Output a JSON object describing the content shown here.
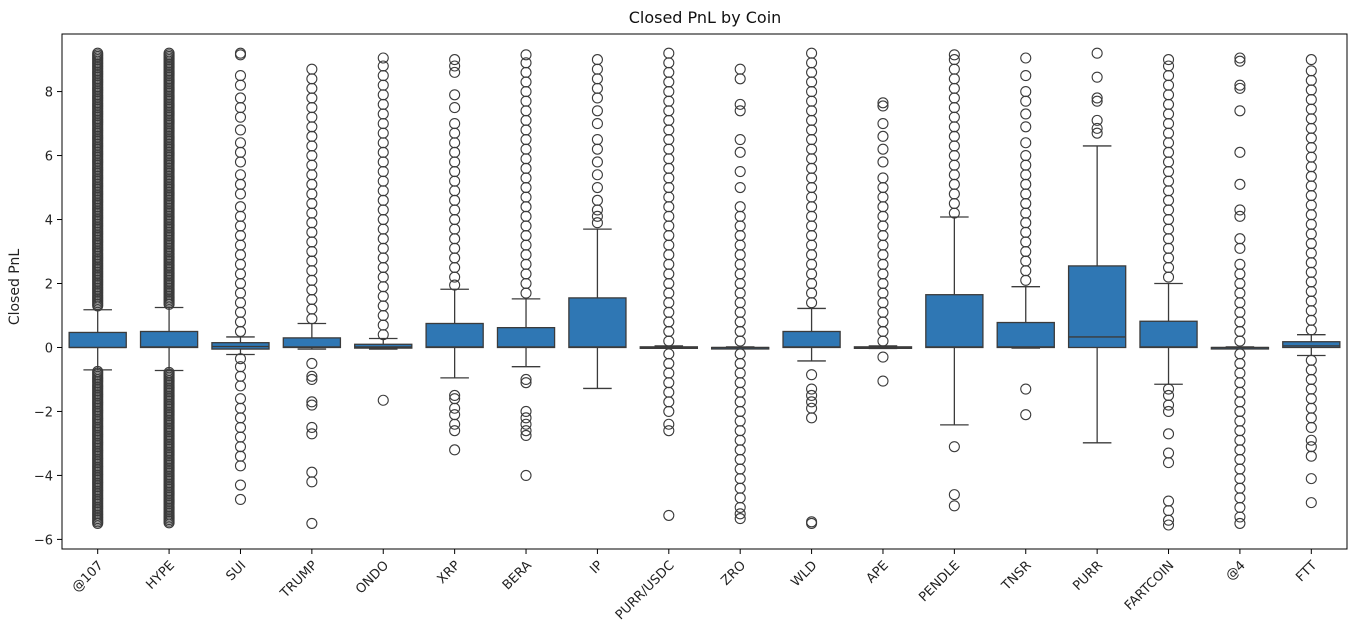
{
  "chart_data": {
    "type": "box",
    "title": "Closed PnL by Coin",
    "xlabel": "",
    "ylabel": "Closed PnL",
    "ylim": [
      -6.3,
      9.8
    ],
    "yticks": [
      -6,
      -4,
      -2,
      0,
      2,
      4,
      6,
      8
    ],
    "ytick_labels": [
      "−6",
      "−4",
      "−2",
      "0",
      "2",
      "4",
      "6",
      "8"
    ],
    "grid": false,
    "legend": "none",
    "box_color": "#2f77b4",
    "line_color": "#3b3b3b",
    "categories": [
      "@107",
      "HYPE",
      "SUI",
      "TRUMP",
      "ONDO",
      "XRP",
      "BERA",
      "IP",
      "PURR/USDC",
      "ZRO",
      "WLD",
      "APE",
      "PENDLE",
      "TNSR",
      "PURR",
      "FARTCOIN",
      "@4",
      "FTT"
    ],
    "boxes": [
      {
        "category": "@107",
        "whisker_low": -0.7,
        "q1": 0.0,
        "median": 0.0,
        "q3": 0.47,
        "whisker_high": 1.18,
        "outliers_high": [
          1.3,
          9.2
        ],
        "outliers_low": [
          -0.75,
          -5.5
        ],
        "dense": true
      },
      {
        "category": "HYPE",
        "whisker_low": -0.72,
        "q1": 0.0,
        "median": 0.02,
        "q3": 0.5,
        "whisker_high": 1.25,
        "outliers_high": [
          1.35,
          9.2
        ],
        "outliers_low": [
          -0.78,
          -5.5
        ],
        "dense": true
      },
      {
        "category": "SUI",
        "whisker_low": -0.22,
        "q1": -0.05,
        "median": 0.03,
        "q3": 0.15,
        "whisker_high": 0.33,
        "outliers_high": [
          0.5,
          0.8,
          1.1,
          1.4,
          1.7,
          2.0,
          2.3,
          2.6,
          2.9,
          3.2,
          3.5,
          3.8,
          4.1,
          4.4,
          4.8,
          5.1,
          5.4,
          5.8,
          6.1,
          6.4,
          6.8,
          7.2,
          7.5,
          7.8,
          8.2,
          8.5,
          9.15,
          9.2
        ],
        "outliers_low": [
          -0.35,
          -0.6,
          -0.9,
          -1.2,
          -1.6,
          -1.9,
          -2.2,
          -2.5,
          -2.8,
          -3.1,
          -3.4,
          -3.7,
          -4.3,
          -4.75
        ],
        "dense": false
      },
      {
        "category": "TRUMP",
        "whisker_low": -0.05,
        "q1": 0.0,
        "median": 0.02,
        "q3": 0.3,
        "whisker_high": 0.75,
        "outliers_high": [
          0.9,
          1.2,
          1.5,
          1.8,
          2.1,
          2.4,
          2.7,
          3.0,
          3.3,
          3.6,
          3.9,
          4.2,
          4.5,
          4.8,
          5.1,
          5.4,
          5.7,
          6.0,
          6.3,
          6.6,
          6.9,
          7.2,
          7.5,
          7.8,
          8.1,
          8.4,
          8.7
        ],
        "outliers_low": [
          -0.5,
          -0.9,
          -1.0,
          -1.7,
          -1.8,
          -2.5,
          -2.7,
          -3.9,
          -4.2,
          -5.5
        ],
        "dense": false
      },
      {
        "category": "ONDO",
        "whisker_low": -0.05,
        "q1": -0.02,
        "median": 0.02,
        "q3": 0.1,
        "whisker_high": 0.28,
        "outliers_high": [
          0.4,
          0.7,
          1.0,
          1.3,
          1.6,
          1.9,
          2.2,
          2.5,
          2.8,
          3.1,
          3.4,
          3.7,
          4.0,
          4.3,
          4.6,
          4.9,
          5.2,
          5.5,
          5.8,
          6.1,
          6.4,
          6.7,
          7.0,
          7.3,
          7.6,
          7.9,
          8.2,
          8.5,
          8.8,
          9.05
        ],
        "outliers_low": [
          -1.65
        ],
        "dense": false
      },
      {
        "category": "XRP",
        "whisker_low": -0.95,
        "q1": 0.0,
        "median": 0.02,
        "q3": 0.75,
        "whisker_high": 1.82,
        "outliers_high": [
          1.95,
          2.2,
          2.5,
          2.8,
          3.1,
          3.4,
          3.7,
          4.0,
          4.3,
          4.6,
          4.9,
          5.2,
          5.5,
          5.8,
          6.1,
          6.4,
          6.7,
          7.0,
          7.5,
          7.9,
          8.6,
          8.8,
          9.0
        ],
        "outliers_low": [
          -1.5,
          -1.6,
          -1.9,
          -2.1,
          -2.4,
          -2.6,
          -3.2
        ],
        "dense": false
      },
      {
        "category": "BERA",
        "whisker_low": -0.6,
        "q1": 0.0,
        "median": 0.02,
        "q3": 0.62,
        "whisker_high": 1.52,
        "outliers_high": [
          1.7,
          2.0,
          2.3,
          2.6,
          2.9,
          3.2,
          3.5,
          3.8,
          4.1,
          4.4,
          4.7,
          5.0,
          5.3,
          5.6,
          5.9,
          6.2,
          6.5,
          6.8,
          7.1,
          7.4,
          7.7,
          8.0,
          8.3,
          8.6,
          8.9,
          9.15
        ],
        "outliers_low": [
          -1.0,
          -1.1,
          -2.0,
          -2.2,
          -2.4,
          -2.6,
          -2.75,
          -4.0
        ],
        "dense": false
      },
      {
        "category": "IP",
        "whisker_low": -1.28,
        "q1": 0.0,
        "median": 0.02,
        "q3": 1.55,
        "whisker_high": 3.7,
        "outliers_high": [
          3.9,
          4.1,
          4.3,
          4.6,
          5.0,
          5.4,
          5.8,
          6.2,
          6.5,
          7.0,
          7.4,
          7.8,
          8.1,
          8.4,
          8.7,
          9.0
        ],
        "outliers_low": [],
        "dense": false
      },
      {
        "category": "PURR/USDC",
        "whisker_low": -0.02,
        "q1": 0.0,
        "median": 0.0,
        "q3": 0.02,
        "whisker_high": 0.05,
        "outliers_high": [
          0.2,
          0.5,
          0.8,
          1.1,
          1.4,
          1.7,
          2.0,
          2.3,
          2.6,
          2.9,
          3.2,
          3.5,
          3.8,
          4.1,
          4.4,
          4.7,
          5.0,
          5.3,
          5.6,
          5.9,
          6.2,
          6.5,
          6.8,
          7.1,
          7.4,
          7.7,
          8.0,
          8.3,
          8.6,
          8.9,
          9.2
        ],
        "outliers_low": [
          -0.2,
          -0.5,
          -0.8,
          -1.1,
          -1.4,
          -1.7,
          -2.0,
          -2.4,
          -2.6,
          -5.25
        ],
        "dense": false
      },
      {
        "category": "ZRO",
        "whisker_low": -0.02,
        "q1": 0.0,
        "median": 0.0,
        "q3": 0.0,
        "whisker_high": 0.02,
        "outliers_high": [
          0.2,
          0.5,
          0.8,
          1.1,
          1.4,
          1.7,
          2.0,
          2.3,
          2.6,
          2.9,
          3.2,
          3.5,
          3.8,
          4.1,
          4.4,
          5.0,
          5.5,
          6.1,
          6.5,
          7.4,
          7.6,
          8.4,
          8.7
        ],
        "outliers_low": [
          -0.2,
          -0.5,
          -0.8,
          -1.1,
          -1.4,
          -1.7,
          -2.0,
          -2.3,
          -2.6,
          -2.9,
          -3.2,
          -3.5,
          -3.8,
          -4.1,
          -4.4,
          -4.7,
          -5.0,
          -5.2,
          -5.35
        ],
        "dense": false
      },
      {
        "category": "WLD",
        "whisker_low": -0.42,
        "q1": 0.0,
        "median": 0.02,
        "q3": 0.5,
        "whisker_high": 1.22,
        "outliers_high": [
          1.4,
          1.7,
          2.0,
          2.3,
          2.6,
          2.9,
          3.2,
          3.5,
          3.8,
          4.1,
          4.4,
          4.7,
          5.0,
          5.3,
          5.6,
          5.9,
          6.2,
          6.5,
          6.8,
          7.1,
          7.4,
          7.7,
          8.0,
          8.3,
          8.6,
          8.9,
          9.2
        ],
        "outliers_low": [
          -0.85,
          -1.3,
          -1.5,
          -1.7,
          -1.9,
          -2.2,
          -5.45,
          -5.5
        ],
        "dense": false
      },
      {
        "category": "APE",
        "whisker_low": -0.03,
        "q1": 0.0,
        "median": 0.0,
        "q3": 0.02,
        "whisker_high": 0.05,
        "outliers_high": [
          0.2,
          0.5,
          0.8,
          1.1,
          1.4,
          1.7,
          2.0,
          2.3,
          2.6,
          2.9,
          3.2,
          3.5,
          3.8,
          4.1,
          4.4,
          4.7,
          5.0,
          5.3,
          5.8,
          6.2,
          6.6,
          7.0,
          7.55,
          7.65
        ],
        "outliers_low": [
          -0.3,
          -1.05
        ],
        "dense": false
      },
      {
        "category": "PENDLE",
        "whisker_low": -2.42,
        "q1": 0.0,
        "median": 0.02,
        "q3": 1.65,
        "whisker_high": 4.08,
        "outliers_high": [
          4.2,
          4.5,
          4.8,
          5.1,
          5.4,
          5.7,
          6.0,
          6.3,
          6.6,
          6.9,
          7.2,
          7.5,
          7.8,
          8.1,
          8.4,
          8.7,
          9.0,
          9.15
        ],
        "outliers_low": [
          -3.1,
          -4.6,
          -4.95
        ],
        "dense": false
      },
      {
        "category": "TNSR",
        "whisker_low": -0.02,
        "q1": 0.0,
        "median": 0.02,
        "q3": 0.78,
        "whisker_high": 1.9,
        "outliers_high": [
          2.1,
          2.4,
          2.7,
          3.0,
          3.3,
          3.6,
          3.9,
          4.2,
          4.5,
          4.8,
          5.1,
          5.4,
          5.7,
          6.0,
          6.4,
          6.9,
          7.3,
          7.7,
          8.0,
          8.5,
          9.05
        ],
        "outliers_low": [
          -1.3,
          -2.1
        ],
        "dense": false
      },
      {
        "category": "PURR",
        "whisker_low": -2.98,
        "q1": 0.0,
        "median": 0.33,
        "q3": 2.55,
        "whisker_high": 6.3,
        "outliers_high": [
          6.7,
          6.85,
          7.1,
          7.7,
          7.8,
          8.45,
          9.2
        ],
        "outliers_low": [],
        "dense": false
      },
      {
        "category": "FARTCOIN",
        "whisker_low": -1.15,
        "q1": 0.0,
        "median": 0.02,
        "q3": 0.82,
        "whisker_high": 2.0,
        "outliers_high": [
          2.2,
          2.5,
          2.8,
          3.1,
          3.4,
          3.7,
          4.0,
          4.3,
          4.6,
          4.9,
          5.2,
          5.5,
          5.8,
          6.1,
          6.4,
          6.7,
          7.0,
          7.3,
          7.6,
          7.9,
          8.2,
          8.5,
          8.8,
          9.0
        ],
        "outliers_low": [
          -1.3,
          -1.5,
          -1.8,
          -2.0,
          -2.7,
          -3.3,
          -3.6,
          -4.8,
          -5.1,
          -5.4,
          -5.55
        ],
        "dense": false
      },
      {
        "category": "@4",
        "whisker_low": -0.02,
        "q1": 0.0,
        "median": 0.0,
        "q3": 0.0,
        "whisker_high": 0.02,
        "outliers_high": [
          0.2,
          0.5,
          0.8,
          1.1,
          1.4,
          1.7,
          2.0,
          2.3,
          2.6,
          3.1,
          3.4,
          4.1,
          4.3,
          5.1,
          6.1,
          7.4,
          8.1,
          8.2,
          8.95,
          9.05
        ],
        "outliers_low": [
          -0.2,
          -0.5,
          -0.8,
          -1.1,
          -1.4,
          -1.7,
          -2.0,
          -2.3,
          -2.6,
          -2.9,
          -3.2,
          -3.5,
          -3.8,
          -4.1,
          -4.4,
          -4.7,
          -5.0,
          -5.3,
          -5.5
        ],
        "dense": false
      },
      {
        "category": "FTT",
        "whisker_low": -0.25,
        "q1": 0.0,
        "median": 0.05,
        "q3": 0.18,
        "whisker_high": 0.4,
        "outliers_high": [
          0.55,
          0.85,
          1.15,
          1.45,
          1.75,
          2.05,
          2.35,
          2.65,
          2.95,
          3.25,
          3.55,
          3.85,
          4.15,
          4.45,
          4.75,
          5.05,
          5.35,
          5.65,
          5.95,
          6.25,
          6.55,
          6.85,
          7.15,
          7.45,
          7.75,
          8.05,
          8.35,
          8.65,
          9.0
        ],
        "outliers_low": [
          -0.4,
          -0.7,
          -1.0,
          -1.3,
          -1.6,
          -1.9,
          -2.2,
          -2.5,
          -2.9,
          -3.1,
          -3.4,
          -4.1,
          -4.85
        ],
        "dense": false
      }
    ]
  }
}
